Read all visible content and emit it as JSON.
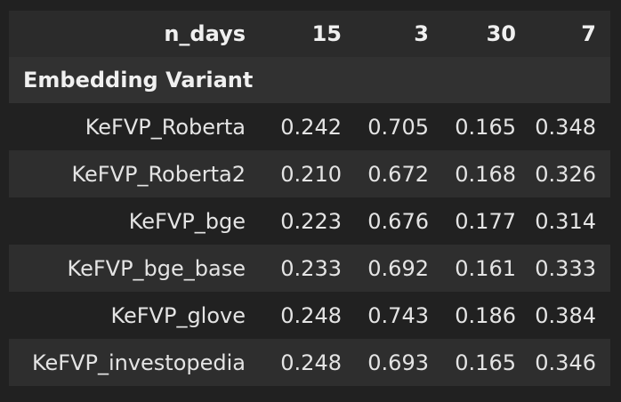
{
  "table": {
    "columns_header_label": "n_days",
    "columns": [
      "15",
      "3",
      "30",
      "7"
    ],
    "index_name": "Embedding Variant",
    "rows": [
      {
        "label": "KeFVP_Roberta",
        "values": [
          "0.242",
          "0.705",
          "0.165",
          "0.348"
        ]
      },
      {
        "label": "KeFVP_Roberta2",
        "values": [
          "0.210",
          "0.672",
          "0.168",
          "0.326"
        ]
      },
      {
        "label": "KeFVP_bge",
        "values": [
          "0.223",
          "0.676",
          "0.177",
          "0.314"
        ]
      },
      {
        "label": "KeFVP_bge_base",
        "values": [
          "0.233",
          "0.692",
          "0.161",
          "0.333"
        ]
      },
      {
        "label": "KeFVP_glove",
        "values": [
          "0.248",
          "0.743",
          "0.186",
          "0.384"
        ]
      },
      {
        "label": "KeFVP_investopedia",
        "values": [
          "0.248",
          "0.693",
          "0.165",
          "0.346"
        ]
      }
    ]
  }
}
